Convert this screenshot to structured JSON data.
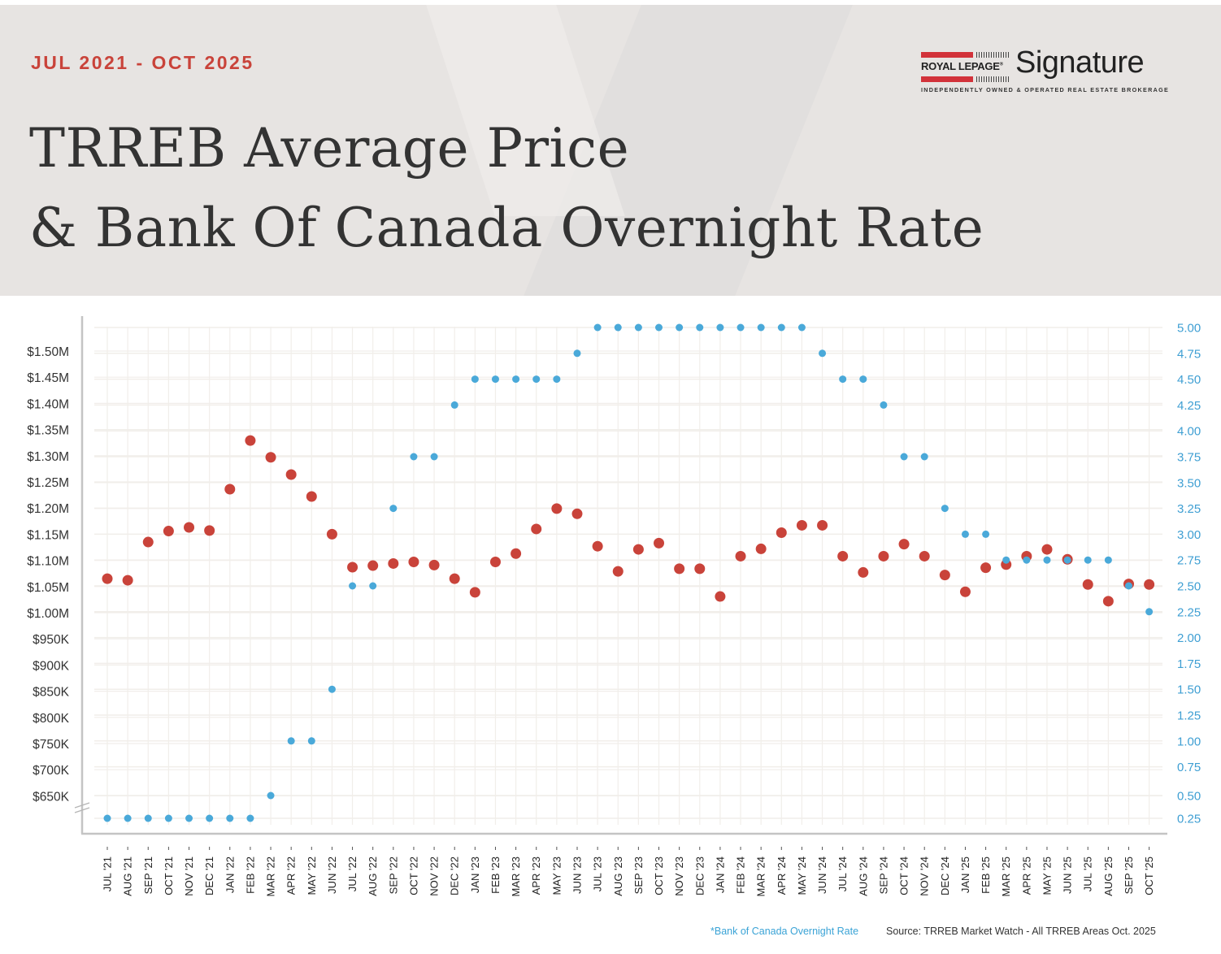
{
  "header": {
    "date_range": "JUL 2021 - OCT 2025",
    "title_line1": "TRREB Average Price",
    "title_line2": "& Bank Of Canada Overnight Rate",
    "logo": {
      "brand": "ROYAL LEPAGE",
      "registered": "®",
      "name": "Signature",
      "tagline": "INDEPENDENTLY OWNED & OPERATED REAL ESTATE BROKERAGE"
    }
  },
  "footer": {
    "note": "*Bank of Canada Overnight Rate",
    "source": "Source: TRREB Market Watch - All TRREB Areas Oct. 2025"
  },
  "colors": {
    "price": "#c9433a",
    "rate": "#4aa9d9",
    "accent": "#c9433a",
    "grid": "#f1eeea",
    "axis": "#c4c4c4",
    "header_bg": "#e7e4e2"
  },
  "chart_data": {
    "type": "scatter",
    "title": "TRREB Average Price & Bank Of Canada Overnight Rate",
    "subtitle": "JUL 2021 - OCT 2025",
    "xlabel": "",
    "ylabel_left": "TRREB Average Price",
    "ylabel_right": "Bank of Canada Overnight Rate (%)",
    "grid": true,
    "left_axis_break": true,
    "left_ylim": [
      650000,
      1500000
    ],
    "right_ylim": [
      0.25,
      5.0
    ],
    "left_ticks": [
      "$1.50M",
      "$1.45M",
      "$1.40M",
      "$1.35M",
      "$1.30M",
      "$1.25M",
      "$1.20M",
      "$1.15M",
      "$1.10M",
      "$1.05M",
      "$1.00M",
      "$950K",
      "$900K",
      "$850K",
      "$800K",
      "$750K",
      "$700K",
      "$650K"
    ],
    "left_tick_values": [
      1500000,
      1450000,
      1400000,
      1350000,
      1300000,
      1250000,
      1200000,
      1150000,
      1100000,
      1050000,
      1000000,
      950000,
      900000,
      850000,
      800000,
      750000,
      700000,
      650000
    ],
    "right_ticks": [
      "5.00",
      "4.75",
      "4.50",
      "4.25",
      "4.00",
      "3.75",
      "3.50",
      "3.25",
      "3.00",
      "2.75",
      "2.50",
      "2.25",
      "2.00",
      "1.75",
      "1.50",
      "1.25",
      "1.00",
      "0.75",
      "0.50",
      "0.25"
    ],
    "right_tick_values": [
      5.0,
      4.75,
      4.5,
      4.25,
      4.0,
      3.75,
      3.5,
      3.25,
      3.0,
      2.75,
      2.5,
      2.25,
      2.0,
      1.75,
      1.5,
      1.25,
      1.0,
      0.75,
      0.5,
      0.25
    ],
    "categories": [
      "JUL '21",
      "AUG '21",
      "SEP '21",
      "OCT '21",
      "NOV '21",
      "DEC '21",
      "JAN '22",
      "FEB '22",
      "MAR '22",
      "APR '22",
      "MAY '22",
      "JUN '22",
      "JUL '22",
      "AUG '22",
      "SEP '22",
      "OCT '22",
      "NOV '22",
      "DEC '22",
      "JAN '23",
      "FEB '23",
      "MAR '23",
      "APR '23",
      "MAY '23",
      "JUN '23",
      "JUL '23",
      "AUG '23",
      "SEP '23",
      "OCT '23",
      "NOV '23",
      "DEC '23",
      "JAN '24",
      "FEB '24",
      "MAR '24",
      "APR '24",
      "MAY '24",
      "JUN '24",
      "JUL '24",
      "AUG '24",
      "SEP '24",
      "OCT '24",
      "NOV '24",
      "DEC '24",
      "JAN '25",
      "FEB '25",
      "MAR '25",
      "APR '25",
      "MAY '25",
      "JUN '25",
      "JUL '25",
      "AUG '25",
      "SEP '25",
      "OCT '25"
    ],
    "series": [
      {
        "name": "TRREB Average Price",
        "axis": "left",
        "color": "#c9433a",
        "values": [
          1065000,
          1062000,
          1135000,
          1156000,
          1163000,
          1157000,
          1236000,
          1329000,
          1297000,
          1264000,
          1222000,
          1150000,
          1087000,
          1090000,
          1094000,
          1097000,
          1091000,
          1065000,
          1039000,
          1097000,
          1113000,
          1160000,
          1199000,
          1189000,
          1127000,
          1079000,
          1121000,
          1133000,
          1084000,
          1084000,
          1031000,
          1108000,
          1122000,
          1153000,
          1167000,
          1167000,
          1108000,
          1077000,
          1108000,
          1131000,
          1108000,
          1072000,
          1040000,
          1086000,
          1092000,
          1108000,
          1121000,
          1102000,
          1054000,
          1022000,
          1055000,
          1054000
        ]
      },
      {
        "name": "Bank of Canada Overnight Rate",
        "axis": "right",
        "color": "#4aa9d9",
        "values": [
          0.25,
          0.25,
          0.25,
          0.25,
          0.25,
          0.25,
          0.25,
          0.25,
          0.5,
          1.0,
          1.0,
          1.5,
          2.5,
          2.5,
          3.25,
          3.75,
          3.75,
          4.25,
          4.5,
          4.5,
          4.5,
          4.5,
          4.5,
          4.75,
          5.0,
          5.0,
          5.0,
          5.0,
          5.0,
          5.0,
          5.0,
          5.0,
          5.0,
          5.0,
          5.0,
          4.75,
          4.5,
          4.5,
          4.25,
          3.75,
          3.75,
          3.25,
          3.0,
          3.0,
          2.75,
          2.75,
          2.75,
          2.75,
          2.75,
          2.75,
          2.5,
          2.25
        ]
      }
    ]
  }
}
